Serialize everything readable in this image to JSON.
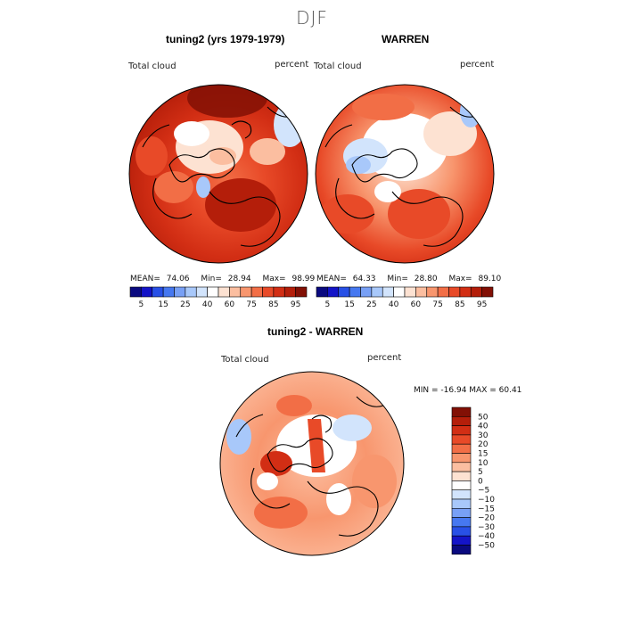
{
  "page": {
    "title": "DJF"
  },
  "colors": {
    "full_scale": [
      "#0a0a80",
      "#1414c8",
      "#2850e6",
      "#4678f0",
      "#78a0f5",
      "#a8c8fa",
      "#d2e4fc",
      "#ffffff",
      "#fde2d2",
      "#fbbea0",
      "#f8966e",
      "#f26e46",
      "#e84a28",
      "#d22e14",
      "#b41e0a",
      "#821005"
    ],
    "diff_scale": [
      "#0a0a80",
      "#1414c8",
      "#2850e6",
      "#4678f0",
      "#78a0f5",
      "#a8c8fa",
      "#d2e4fc",
      "#ffffff",
      "#fde2d2",
      "#fbbea0",
      "#f8966e",
      "#f26e46",
      "#e84a28",
      "#d22e14",
      "#b41e0a",
      "#821005"
    ]
  },
  "panels": [
    {
      "title": "tuning2 (yrs 1979-1979)",
      "var_label": "Total cloud",
      "unit_label": "percent",
      "mean_label": "MEAN=",
      "mean": "74.06",
      "min_label": "Min=",
      "min": "28.94",
      "max_label": "Max=",
      "max": "98.99",
      "colorbar_ticks": [
        "5",
        "15",
        "25",
        "40",
        "60",
        "75",
        "85",
        "95"
      ],
      "field_level": 0.78
    },
    {
      "title": "WARREN",
      "var_label": "Total cloud",
      "unit_label": "percent",
      "mean_label": "MEAN=",
      "mean": "64.33",
      "min_label": "Min=",
      "min": "28.80",
      "max_label": "Max=",
      "max": "89.10",
      "colorbar_ticks": [
        "5",
        "15",
        "25",
        "40",
        "60",
        "75",
        "85",
        "95"
      ],
      "field_level": 0.62
    }
  ],
  "diff_panel": {
    "title": "tuning2 - WARREN",
    "var_label": "Total cloud",
    "unit_label": "percent",
    "min_max_text": "MIN = -16.94 MAX =   60.41",
    "colorbar_ticks": [
      "50",
      "40",
      "30",
      "20",
      "15",
      "10",
      "5",
      "0",
      "−5",
      "−10",
      "−15",
      "−20",
      "−30",
      "−40",
      "−50"
    ]
  }
}
